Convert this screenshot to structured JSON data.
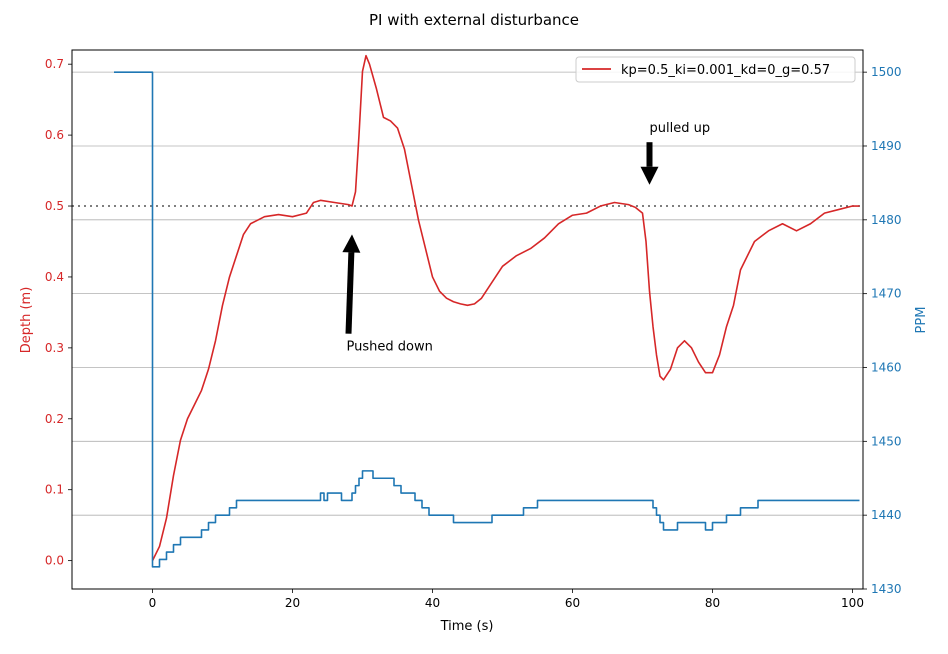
{
  "chart_data": {
    "type": "line",
    "title": "PI with external disturbance",
    "xlabel": "Time (s)",
    "xlim": [
      -11.5,
      101.5
    ],
    "x_ticks": [
      0,
      20,
      40,
      60,
      80,
      100
    ],
    "y_left": {
      "label": "Depth (m)",
      "lim": [
        -0.04,
        0.72
      ],
      "ticks": [
        0.0,
        0.1,
        0.2,
        0.3,
        0.4,
        0.5,
        0.6,
        0.7
      ],
      "color": "#d62728"
    },
    "y_right": {
      "label": "PPM",
      "lim": [
        1430,
        1503
      ],
      "ticks": [
        1430,
        1440,
        1450,
        1460,
        1470,
        1480,
        1490,
        1500
      ],
      "color": "#1f77b4"
    },
    "grid": "right-axis horizontal",
    "legend": {
      "position": "top-right",
      "entries": [
        "kp=0.5_ki=0.001_kd=0_g=0.57"
      ]
    },
    "setpoint": {
      "y": 0.5,
      "style": "dotted",
      "color": "#555555"
    },
    "series": [
      {
        "name": "kp=0.5_ki=0.001_kd=0_g=0.57",
        "axis": "left",
        "color": "#d62728",
        "x": [
          0,
          1,
          2,
          3,
          4,
          5,
          6,
          7,
          8,
          9,
          10,
          11,
          12,
          13,
          14,
          16,
          18,
          20,
          22,
          23,
          24,
          26,
          28,
          28.5,
          29,
          29.5,
          30,
          30.5,
          31,
          32,
          33,
          34,
          35,
          36,
          37,
          38,
          39,
          40,
          41,
          42,
          43,
          44,
          45,
          46,
          47,
          48,
          49,
          50,
          52,
          54,
          56,
          58,
          60,
          62,
          64,
          66,
          68,
          69,
          70,
          70.5,
          71,
          71.5,
          72,
          72.5,
          73,
          74,
          75,
          76,
          77,
          78,
          79,
          80,
          81,
          82,
          83,
          84,
          86,
          88,
          90,
          92,
          94,
          96,
          98,
          100,
          101
        ],
        "y": [
          0.0,
          0.02,
          0.06,
          0.12,
          0.17,
          0.2,
          0.22,
          0.24,
          0.27,
          0.31,
          0.36,
          0.4,
          0.43,
          0.46,
          0.475,
          0.485,
          0.488,
          0.485,
          0.49,
          0.505,
          0.508,
          0.505,
          0.502,
          0.5,
          0.52,
          0.6,
          0.69,
          0.712,
          0.7,
          0.665,
          0.625,
          0.62,
          0.61,
          0.58,
          0.53,
          0.48,
          0.44,
          0.4,
          0.38,
          0.37,
          0.365,
          0.362,
          0.36,
          0.362,
          0.37,
          0.385,
          0.4,
          0.415,
          0.43,
          0.44,
          0.455,
          0.475,
          0.487,
          0.49,
          0.5,
          0.505,
          0.502,
          0.498,
          0.49,
          0.45,
          0.38,
          0.33,
          0.29,
          0.26,
          0.255,
          0.27,
          0.3,
          0.31,
          0.3,
          0.28,
          0.265,
          0.265,
          0.29,
          0.33,
          0.36,
          0.41,
          0.45,
          0.465,
          0.475,
          0.465,
          0.475,
          0.49,
          0.495,
          0.5,
          0.5
        ]
      },
      {
        "name": "",
        "axis": "right",
        "color": "#1f77b4",
        "step": true,
        "x": [
          -5.5,
          0,
          0.1,
          1,
          2,
          3,
          4,
          5,
          7,
          8,
          9,
          10,
          11,
          12,
          23.5,
          24,
          24.5,
          25,
          27,
          28.2,
          28.5,
          29,
          29.5,
          30,
          31.5,
          34.5,
          35.5,
          37.5,
          38.5,
          39.5,
          43,
          48.5,
          53,
          55,
          65.5,
          68,
          71.5,
          72,
          72.5,
          73,
          75,
          79,
          80,
          82,
          84,
          86.5,
          101
        ],
        "y": [
          1500,
          1433,
          1433,
          1434,
          1435,
          1436,
          1437,
          1437,
          1438,
          1439,
          1440,
          1440,
          1441,
          1442,
          1442,
          1443,
          1442,
          1443,
          1442,
          1442,
          1443,
          1444,
          1445,
          1446,
          1445,
          1444,
          1443,
          1442,
          1441,
          1440,
          1439,
          1440,
          1441,
          1442,
          1442,
          1442,
          1441,
          1440,
          1439,
          1438,
          1439,
          1438,
          1439,
          1440,
          1441,
          1442,
          1442
        ]
      }
    ],
    "annotations": [
      {
        "text": "Pushed down",
        "arrow_from": [
          28,
          0.32
        ],
        "arrow_to": [
          28.5,
          0.46
        ]
      },
      {
        "text": "pulled up",
        "arrow_from": [
          71,
          0.59
        ],
        "arrow_to": [
          71,
          0.53
        ]
      }
    ]
  }
}
